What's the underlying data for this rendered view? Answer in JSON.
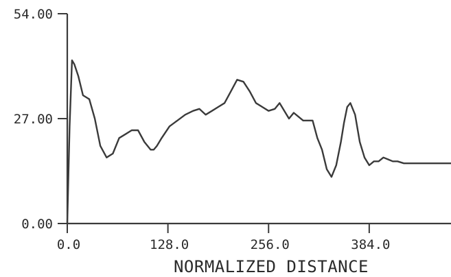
{
  "chart_data": {
    "type": "line",
    "title": "",
    "xlabel": "NORMALIZED DISTANCE",
    "ylabel": "",
    "xlim": [
      0,
      488
    ],
    "ylim": [
      0,
      54
    ],
    "x_ticks": [
      {
        "value": 0,
        "label": "0.0"
      },
      {
        "value": 128,
        "label": "128.0"
      },
      {
        "value": 256,
        "label": "256.0"
      },
      {
        "value": 384,
        "label": "384.0"
      }
    ],
    "y_ticks": [
      {
        "value": 0,
        "label": "0.00"
      },
      {
        "value": 27,
        "label": "27.00"
      },
      {
        "value": 54,
        "label": "54.00"
      }
    ],
    "grid": false,
    "legend": "none",
    "line_color": "#3a3a3a",
    "series": [
      {
        "x": [
          0,
          3,
          6,
          9,
          14,
          20,
          28,
          35,
          42,
          50,
          58,
          66,
          74,
          82,
          90,
          98,
          106,
          110,
          114,
          120,
          130,
          140,
          150,
          160,
          168,
          176,
          184,
          192,
          200,
          208,
          216,
          224,
          232,
          240,
          248,
          256,
          264,
          270,
          276,
          282,
          288,
          294,
          300,
          306,
          312,
          318,
          324,
          330,
          336,
          342,
          348,
          352,
          356,
          360,
          366,
          372,
          378,
          384,
          390,
          396,
          402,
          408,
          414,
          420,
          428,
          436,
          444,
          452,
          460,
          470,
          480,
          488
        ],
        "y": [
          0,
          25,
          42,
          41,
          38,
          33,
          32,
          27,
          20,
          17,
          18,
          22,
          23,
          24,
          24,
          21,
          19,
          19,
          20,
          22,
          25,
          26.5,
          28,
          29,
          29.5,
          28,
          29,
          30,
          31,
          34,
          37,
          36.5,
          34,
          31,
          30,
          29,
          29.5,
          31,
          29,
          27,
          28.5,
          27.5,
          26.5,
          26.5,
          26.5,
          22,
          19,
          14,
          12,
          15,
          21,
          26,
          30,
          31,
          28,
          21,
          17,
          15,
          16,
          16,
          17,
          16.5,
          16,
          16,
          15.5,
          15.5,
          15.5,
          15.5,
          15.5,
          15.5,
          15.5,
          15.5
        ]
      }
    ]
  }
}
